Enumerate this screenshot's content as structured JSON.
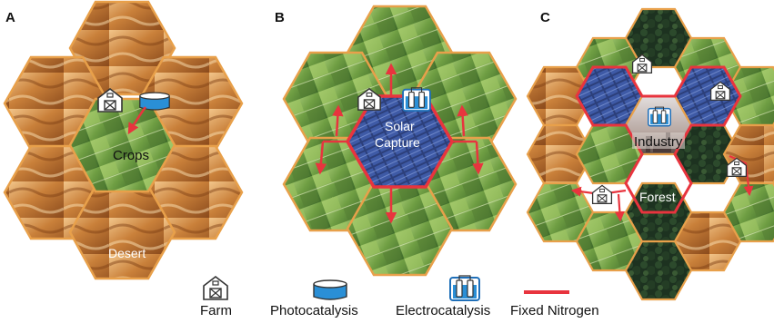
{
  "panels": {
    "a": {
      "letter": "A",
      "center_label": "Crops",
      "bottom_label": "Desert"
    },
    "b": {
      "letter": "B",
      "center_label_line1": "Solar",
      "center_label_line2": "Capture"
    },
    "c": {
      "letter": "C",
      "center_label": "Industry",
      "lower_label": "Forest"
    }
  },
  "legend": {
    "farm": "Farm",
    "photocatalysis": "Photocatalysis",
    "electrocatalysis": "Electrocatalysis",
    "fixed_nitrogen": "Fixed Nitrogen"
  },
  "colors": {
    "hex_border": "#e8a04a",
    "fixed_nitrogen": "#e8343e",
    "photocatalysis": "#2a8fd6",
    "electrocatalysis": "#1f6fb8"
  }
}
